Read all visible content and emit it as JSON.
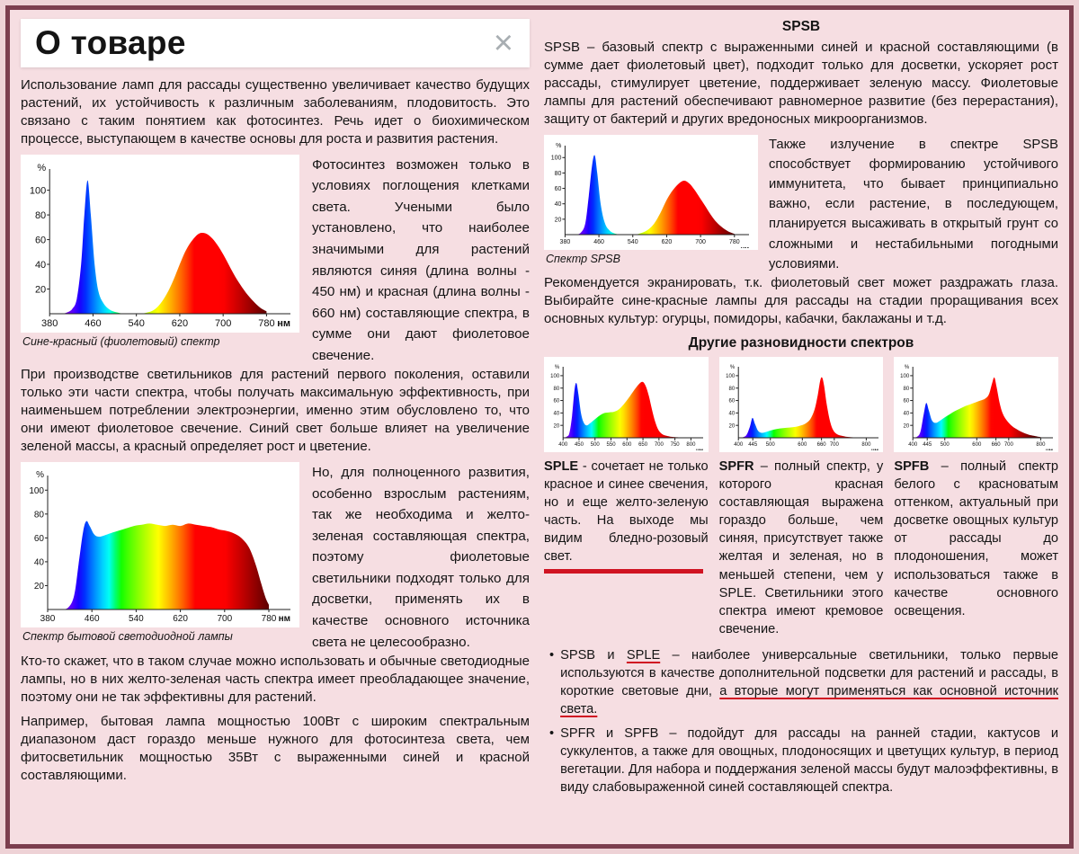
{
  "page": {
    "title": "О товаре",
    "close_icon": "×"
  },
  "left": {
    "p1": "Использование ламп для рассады существенно увеличивает качество будущих растений, их устойчивость к различным заболеваниям, плодовитость. Это связано с таким понятием как фотосинтез. Речь идет о биохимическом процессе, выступающем в качестве основы для роста и развития растения.",
    "p2_side": "Фотосинтез возможен только в условиях поглощения клетками света. Учеными было установлено, что наиболее значимыми для растений являются синяя (длина волны - 450 нм) и красная (длина волны - 660 нм) составляющие спектра, в сумме они дают фиолетовое свечение.",
    "p3": "При производстве светильников для растений первого поколения, оставили только эти части спектра, чтобы получать максимальную эффективность, при наименьшем потреблении электроэнергии, именно этим обусловлено то, что они имеют фиолетовое свечение. Синий свет больше влияет на увеличение зеленой массы, а красный определяет рост и цветение.",
    "p4_side": "Но, для полноценного развития, особенно взрослым растениям, так же необходима и желто-зеленая составляющая спектра, поэтому фиолетовые светильники подходят только для досветки, применять их в качестве основного источника света не целесообразно.",
    "p5": "Кто-то скажет, что в таком случае можно использовать и обычные светодиодные лампы, но в них желто-зеленая часть спектра имеет преобладающее значение, поэтому они не так эффективны для растений.",
    "p6": "Например, бытовая лампа мощностью 100Вт с широким спектральным диапазоном даст гораздо меньше нужного для фотосинтеза света, чем фитосветильник мощностью 35Вт с выраженными синей и красной составляющими."
  },
  "right": {
    "spsb_title": "SPSB",
    "p1": "SPSB – базовый спектр с выраженными синей и красной составляющими (в сумме дает фиолетовый цвет), подходит только для досветки, ускоряет рост рассады, стимулирует цветение, поддерживает зеленую массу. Фиолетовые лампы для растений обеспечивают равномерное развитие (без перерастания), защиту от бактерий и других вредоносных микроорганизмов.",
    "p2_side": "Также излучение в спектре SPSB способствует формированию устойчивого иммунитета, что бывает принципиально важно, если растение, в последующем, планируется высаживать в открытый грунт со сложными и нестабильными погодными условиями.",
    "p3": "Рекомендуется экранировать, т.к. фиолетовый свет может раздражать глаза. Выбирайте сине-красные лампы для рассады на стадии проращивания всех основных культур: огурцы, помидоры, кабачки, баклажаны и т.д.",
    "others_title": "Другие разновидности спектров",
    "sple_text": [
      {
        "t": "SPLE",
        "b": true
      },
      {
        "t": " - сочетает не только красное и синее свечения, но и еще желто-зеленую часть. На выходе мы видим бледно-розовый свет."
      }
    ],
    "spfr_text": [
      {
        "t": "SPFR",
        "b": true
      },
      {
        "t": " – полный спектр, у которого красная составляющая выражена гораздо больше, чем синяя, присутствует также желтая и зеленая, но в меньшей степени, чем у SPLE. Светильники этого спектра имеют кремовое свечение."
      }
    ],
    "spfb_text": [
      {
        "t": "SPFB",
        "b": true
      },
      {
        "t": " – полный спектр белого с красноватым оттенком, актуальный при досветке овощных культур от рассады до плодоношения, может использоваться также в качестве основного освещения."
      }
    ],
    "bullet_char": "•",
    "bullet1": [
      {
        "t": "SPSB и "
      },
      {
        "t": "SPLE",
        "u": true
      },
      {
        "t": " – наиболее универсальные светильники, только первые используются в качестве дополнительной подсветки для растений и рассады, в короткие световые дни, "
      },
      {
        "t": "а вторые могут применяться как основной источник света.",
        "u": true
      }
    ],
    "bullet2": [
      {
        "t": "SPFR и SPFB – подойдут для рассады на ранней стадии, кактусов и суккулентов, а также для овощных, плодоносящих и цветущих культур, в период вегетации. Для набора и поддержания зеленой массы будут малоэффективны, в виду слабовыраженной синей составляющей спектра."
      }
    ]
  },
  "chart_data": [
    {
      "id": "blue-red-violet-spectrum",
      "type": "area",
      "caption": "Сине-красный (фиолетовый) спектр",
      "x_unit": "нм",
      "y_unit": "%",
      "xmin": 380,
      "xmax": 780,
      "ymax": 115,
      "xticks": [
        380,
        460,
        540,
        620,
        700,
        780
      ],
      "yticks": [
        20,
        40,
        60,
        80,
        100
      ],
      "points": [
        [
          380,
          0
        ],
        [
          400,
          0
        ],
        [
          412,
          1
        ],
        [
          422,
          4
        ],
        [
          430,
          12
        ],
        [
          438,
          40
        ],
        [
          444,
          80
        ],
        [
          450,
          108
        ],
        [
          456,
          80
        ],
        [
          463,
          40
        ],
        [
          470,
          18
        ],
        [
          480,
          8
        ],
        [
          492,
          3
        ],
        [
          505,
          1
        ],
        [
          520,
          0
        ],
        [
          545,
          0
        ],
        [
          560,
          1
        ],
        [
          572,
          3
        ],
        [
          584,
          8
        ],
        [
          596,
          16
        ],
        [
          608,
          27
        ],
        [
          620,
          40
        ],
        [
          632,
          52
        ],
        [
          644,
          60
        ],
        [
          656,
          65
        ],
        [
          668,
          65
        ],
        [
          680,
          61
        ],
        [
          692,
          54
        ],
        [
          704,
          45
        ],
        [
          716,
          35
        ],
        [
          728,
          26
        ],
        [
          742,
          17
        ],
        [
          756,
          10
        ],
        [
          768,
          5
        ],
        [
          780,
          2
        ]
      ]
    },
    {
      "id": "household-led-spectrum",
      "type": "area",
      "caption": "Спектр бытовой светодиодной лампы",
      "x_unit": "нм",
      "y_unit": "%",
      "xmin": 380,
      "xmax": 780,
      "ymax": 110,
      "xticks": [
        380,
        460,
        540,
        620,
        700,
        780
      ],
      "yticks": [
        20,
        40,
        60,
        80,
        100
      ],
      "points": [
        [
          380,
          0
        ],
        [
          405,
          0
        ],
        [
          418,
          2
        ],
        [
          428,
          12
        ],
        [
          436,
          38
        ],
        [
          444,
          65
        ],
        [
          450,
          74
        ],
        [
          456,
          70
        ],
        [
          464,
          63
        ],
        [
          472,
          61
        ],
        [
          482,
          62
        ],
        [
          494,
          64
        ],
        [
          508,
          66
        ],
        [
          522,
          68
        ],
        [
          536,
          70
        ],
        [
          550,
          71
        ],
        [
          564,
          72
        ],
        [
          578,
          71
        ],
        [
          592,
          70
        ],
        [
          606,
          71
        ],
        [
          620,
          70
        ],
        [
          634,
          72
        ],
        [
          648,
          71
        ],
        [
          662,
          70
        ],
        [
          676,
          69
        ],
        [
          690,
          67
        ],
        [
          702,
          66
        ],
        [
          716,
          64
        ],
        [
          730,
          60
        ],
        [
          744,
          52
        ],
        [
          756,
          38
        ],
        [
          766,
          22
        ],
        [
          774,
          10
        ],
        [
          780,
          4
        ]
      ]
    },
    {
      "id": "spsb-spectrum",
      "type": "area",
      "caption": "Спектр SPSB",
      "x_unit": "нм",
      "y_unit": "%",
      "xmin": 380,
      "xmax": 780,
      "ymax": 112,
      "xticks": [
        380,
        460,
        540,
        620,
        700,
        780
      ],
      "yticks": [
        20,
        40,
        60,
        80,
        100
      ],
      "points": [
        [
          380,
          0
        ],
        [
          405,
          0
        ],
        [
          418,
          3
        ],
        [
          428,
          15
        ],
        [
          436,
          50
        ],
        [
          444,
          90
        ],
        [
          450,
          103
        ],
        [
          456,
          80
        ],
        [
          464,
          40
        ],
        [
          474,
          15
        ],
        [
          486,
          5
        ],
        [
          500,
          1
        ],
        [
          520,
          0
        ],
        [
          545,
          0
        ],
        [
          560,
          2
        ],
        [
          575,
          6
        ],
        [
          590,
          14
        ],
        [
          605,
          28
        ],
        [
          620,
          45
        ],
        [
          635,
          58
        ],
        [
          650,
          67
        ],
        [
          662,
          70
        ],
        [
          674,
          66
        ],
        [
          686,
          58
        ],
        [
          698,
          48
        ],
        [
          710,
          38
        ],
        [
          724,
          26
        ],
        [
          738,
          16
        ],
        [
          752,
          9
        ],
        [
          766,
          4
        ],
        [
          780,
          1
        ]
      ]
    },
    {
      "id": "sple-spectrum",
      "type": "area",
      "caption": "SPLE",
      "x_unit": "нм",
      "y_unit": "%",
      "xmin": 400,
      "xmax": 800,
      "ymax": 110,
      "xticks": [
        400,
        450,
        500,
        550,
        600,
        650,
        700,
        750,
        800
      ],
      "yticks": [
        20,
        40,
        60,
        80,
        100
      ],
      "points": [
        [
          400,
          0
        ],
        [
          412,
          2
        ],
        [
          420,
          8
        ],
        [
          428,
          35
        ],
        [
          436,
          78
        ],
        [
          442,
          88
        ],
        [
          448,
          70
        ],
        [
          456,
          40
        ],
        [
          464,
          25
        ],
        [
          474,
          20
        ],
        [
          486,
          24
        ],
        [
          500,
          30
        ],
        [
          515,
          36
        ],
        [
          530,
          40
        ],
        [
          545,
          41
        ],
        [
          560,
          42
        ],
        [
          575,
          46
        ],
        [
          590,
          54
        ],
        [
          605,
          64
        ],
        [
          620,
          75
        ],
        [
          635,
          85
        ],
        [
          648,
          90
        ],
        [
          658,
          84
        ],
        [
          668,
          68
        ],
        [
          678,
          46
        ],
        [
          688,
          26
        ],
        [
          698,
          13
        ],
        [
          710,
          6
        ],
        [
          725,
          3
        ],
        [
          750,
          1
        ],
        [
          800,
          0
        ]
      ]
    },
    {
      "id": "spfr-spectrum",
      "type": "area",
      "caption": "SPFR",
      "x_unit": "нм",
      "y_unit": "%",
      "xmin": 400,
      "xmax": 800,
      "ymax": 110,
      "xticks": [
        400,
        445,
        500,
        600,
        660,
        700,
        800
      ],
      "yticks": [
        20,
        40,
        60,
        80,
        100
      ],
      "points": [
        [
          400,
          0
        ],
        [
          415,
          1
        ],
        [
          426,
          5
        ],
        [
          436,
          18
        ],
        [
          444,
          32
        ],
        [
          452,
          22
        ],
        [
          462,
          11
        ],
        [
          474,
          8
        ],
        [
          490,
          10
        ],
        [
          510,
          13
        ],
        [
          530,
          15
        ],
        [
          550,
          16
        ],
        [
          570,
          17
        ],
        [
          590,
          19
        ],
        [
          610,
          23
        ],
        [
          625,
          30
        ],
        [
          638,
          45
        ],
        [
          648,
          68
        ],
        [
          656,
          92
        ],
        [
          662,
          97
        ],
        [
          668,
          84
        ],
        [
          676,
          55
        ],
        [
          686,
          28
        ],
        [
          696,
          13
        ],
        [
          708,
          6
        ],
        [
          725,
          3
        ],
        [
          750,
          1
        ],
        [
          800,
          0
        ]
      ]
    },
    {
      "id": "spfb-spectrum",
      "type": "area",
      "caption": "SPFB",
      "x_unit": "нм",
      "y_unit": "%",
      "xmin": 400,
      "xmax": 800,
      "ymax": 110,
      "xticks": [
        400,
        445,
        500,
        600,
        660,
        700,
        800
      ],
      "yticks": [
        20,
        40,
        60,
        80,
        100
      ],
      "points": [
        [
          400,
          0
        ],
        [
          414,
          2
        ],
        [
          424,
          10
        ],
        [
          434,
          38
        ],
        [
          442,
          56
        ],
        [
          450,
          44
        ],
        [
          460,
          28
        ],
        [
          472,
          24
        ],
        [
          486,
          28
        ],
        [
          500,
          33
        ],
        [
          516,
          38
        ],
        [
          532,
          43
        ],
        [
          548,
          47
        ],
        [
          564,
          51
        ],
        [
          580,
          54
        ],
        [
          596,
          57
        ],
        [
          612,
          60
        ],
        [
          626,
          63
        ],
        [
          638,
          70
        ],
        [
          648,
          88
        ],
        [
          655,
          97
        ],
        [
          662,
          82
        ],
        [
          672,
          55
        ],
        [
          682,
          38
        ],
        [
          694,
          28
        ],
        [
          708,
          20
        ],
        [
          724,
          14
        ],
        [
          742,
          9
        ],
        [
          762,
          5
        ],
        [
          780,
          3
        ],
        [
          800,
          1
        ]
      ]
    }
  ]
}
